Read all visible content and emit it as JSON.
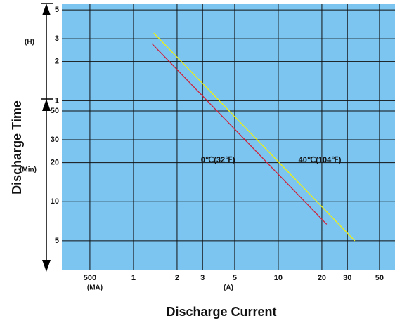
{
  "chart_data": {
    "type": "line",
    "x_label": "Discharge Current",
    "y_label": "Discharge Time",
    "xlog": true,
    "ylog": true,
    "grid": true,
    "xlim": [
      0.32,
      64
    ],
    "ylim": [
      2.96,
      336
    ],
    "xticks": [
      {
        "value": 0.5,
        "label": "500"
      },
      1,
      2,
      3,
      5,
      10,
      20,
      30,
      50
    ],
    "yticks": [
      {
        "value": 300,
        "label": "5"
      },
      {
        "value": 180,
        "label": "3"
      },
      {
        "value": 120,
        "label": "2"
      },
      {
        "value": 60,
        "label": "1"
      },
      50,
      30,
      20,
      10,
      5
    ],
    "annotations": [
      "(H)",
      "(Min)",
      "(MA)",
      "(A)"
    ],
    "series": [
      {
        "name": "0℃(32℉)",
        "color": "#d0213a",
        "x": [
          1.34,
          21.6
        ],
        "values": [
          165,
          6.7
        ]
      },
      {
        "name": "40℃(104℉)",
        "color": "#f2f20a",
        "x": [
          1.38,
          33.8
        ],
        "values": [
          199,
          5
        ]
      }
    ]
  }
}
